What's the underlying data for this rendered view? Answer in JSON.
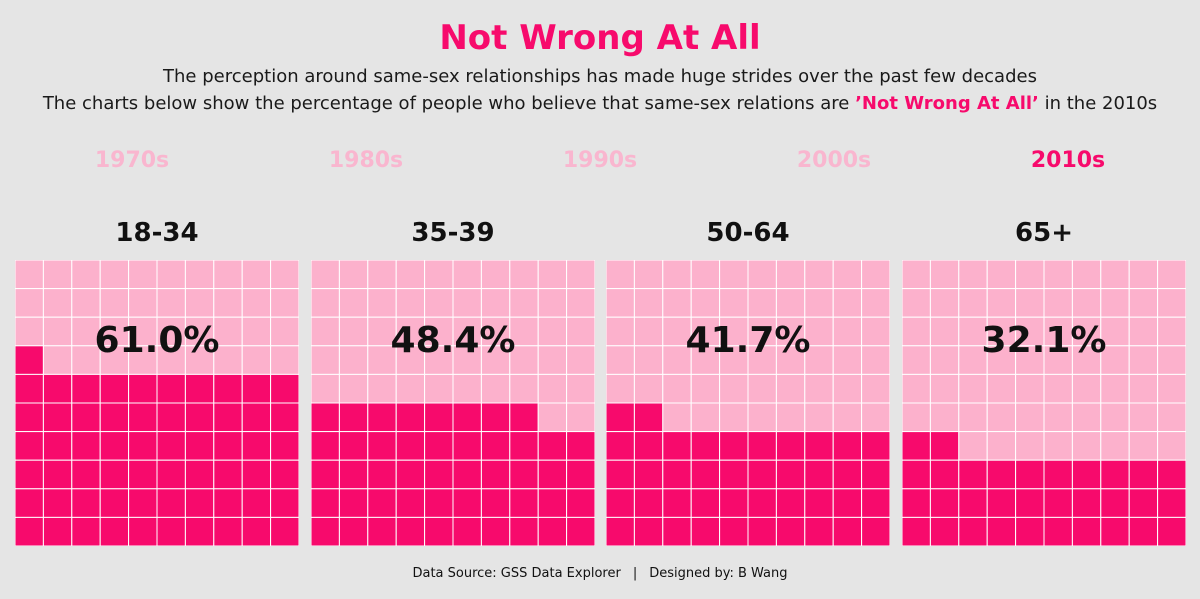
{
  "header": {
    "title": "Not Wrong At All",
    "subtitle_line1": "The perception around same-sex relationships has made huge strides over the past few decades",
    "subtitle_line2_pre": "The charts below show the percentage of people who believe that same-sex relations are ",
    "subtitle_line2_highlight": "’Not Wrong At All’",
    "subtitle_line2_post": " in the 2010s"
  },
  "decades": [
    {
      "label": "1970s",
      "active": false
    },
    {
      "label": "1980s",
      "active": false
    },
    {
      "label": "1990s",
      "active": false
    },
    {
      "label": "2000s",
      "active": false
    },
    {
      "label": "2010s",
      "active": true
    }
  ],
  "colors": {
    "filled": "#f70a6c",
    "empty": "#fcb1cc",
    "decade_inactive": "#f9b6cf",
    "decade_active": "#f70a6c",
    "grid_line": "#ffffff"
  },
  "chart_data": {
    "type": "waffle",
    "grid": {
      "rows": 10,
      "cols": 10
    },
    "categories": [
      "18-34",
      "35-39",
      "50-64",
      "65+"
    ],
    "values": [
      61.0,
      48.4,
      41.7,
      32.1
    ],
    "labels": [
      "61.0%",
      "48.4%",
      "41.7%",
      "32.1%"
    ],
    "unit": "%"
  },
  "footer": {
    "source": "Data Source: GSS Data Explorer",
    "separator": "|",
    "designer": "Designed by: B Wang"
  }
}
